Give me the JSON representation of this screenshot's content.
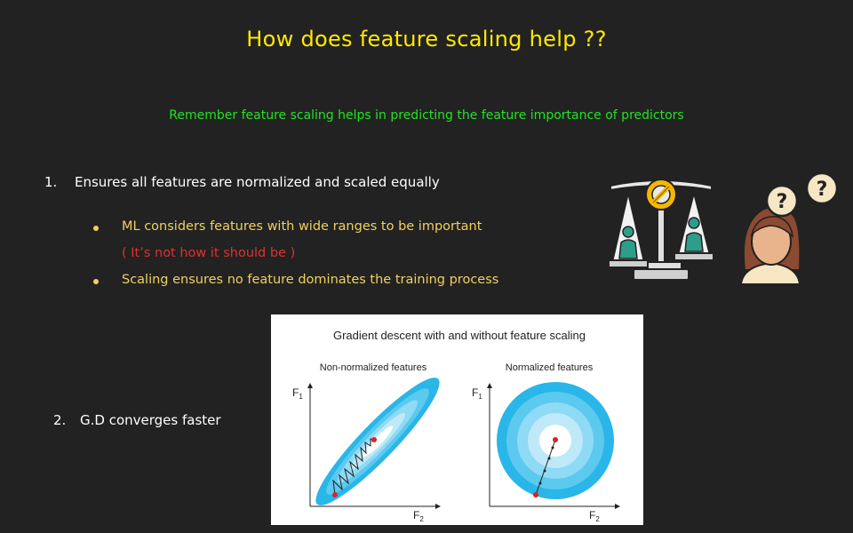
{
  "title": "How does feature scaling help ??",
  "subtitle": "Remember feature scaling helps in predicting the feature importance of predictors",
  "point1": {
    "number": "1.",
    "text": "Ensures all features are normalized and scaled equally",
    "bullets": [
      "ML considers features with wide ranges to be important",
      "Scaling ensures no feature dominates the training process"
    ],
    "note": "( It’s not how it should be )"
  },
  "point2": {
    "number": "2.",
    "text": "G.D converges faster"
  },
  "figure": {
    "title": "Gradient descent with and without feature scaling",
    "left_label": "Non-normalized features",
    "right_label": "Normalized features",
    "axis_y": "F",
    "axis_y_sub": "1",
    "axis_x": "F",
    "axis_x_sub": "2"
  },
  "illustration": {
    "question_mark": "?"
  },
  "colors": {
    "background": "#222222",
    "title": "#ffea00",
    "subtitle": "#22e322",
    "bullet": "#f0d060",
    "note": "#e03030",
    "contour": "#29b6e8",
    "balance_yellow": "#f5b800",
    "person_teal": "#2e9e8a"
  }
}
